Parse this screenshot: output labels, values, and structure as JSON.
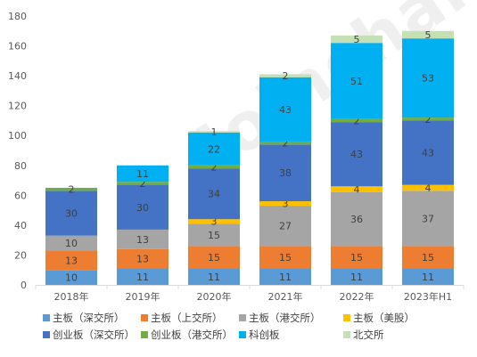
{
  "chart_data": {
    "type": "bar",
    "stacked": true,
    "title": "",
    "xlabel": "",
    "ylabel": "",
    "categories": [
      "2018年",
      "2019年",
      "2020年",
      "2021年",
      "2022年",
      "2023年H1"
    ],
    "ylim": [
      0,
      180
    ],
    "yticks": [
      0,
      20,
      40,
      60,
      80,
      100,
      120,
      140,
      160,
      180
    ],
    "grid": false,
    "legend_position": "bottom",
    "watermark": "Joinchain",
    "series": [
      {
        "name": "主板（深交所）",
        "color": "#5B9BD5",
        "values": [
          10,
          11,
          11,
          11,
          11,
          11
        ]
      },
      {
        "name": "主板（上交所）",
        "color": "#ED7D31",
        "values": [
          13,
          13,
          15,
          15,
          15,
          15
        ]
      },
      {
        "name": "主板（港交所）",
        "color": "#A5A5A5",
        "values": [
          10,
          13,
          15,
          27,
          36,
          37
        ]
      },
      {
        "name": "主板（美股）",
        "color": "#FFC000",
        "values": [
          0,
          0,
          3,
          3,
          4,
          4
        ]
      },
      {
        "name": "创业板（深交所）",
        "color": "#4472C4",
        "values": [
          30,
          30,
          34,
          38,
          43,
          43
        ]
      },
      {
        "name": "创业板（港交所）",
        "color": "#70AD47",
        "values": [
          2,
          2,
          2,
          2,
          2,
          2
        ]
      },
      {
        "name": "科创板",
        "color": "#00B0F0",
        "values": [
          0,
          11,
          22,
          43,
          51,
          53
        ]
      },
      {
        "name": "北交所",
        "color": "#C5E0B4",
        "values": [
          0,
          0,
          1,
          2,
          5,
          5
        ]
      }
    ]
  }
}
